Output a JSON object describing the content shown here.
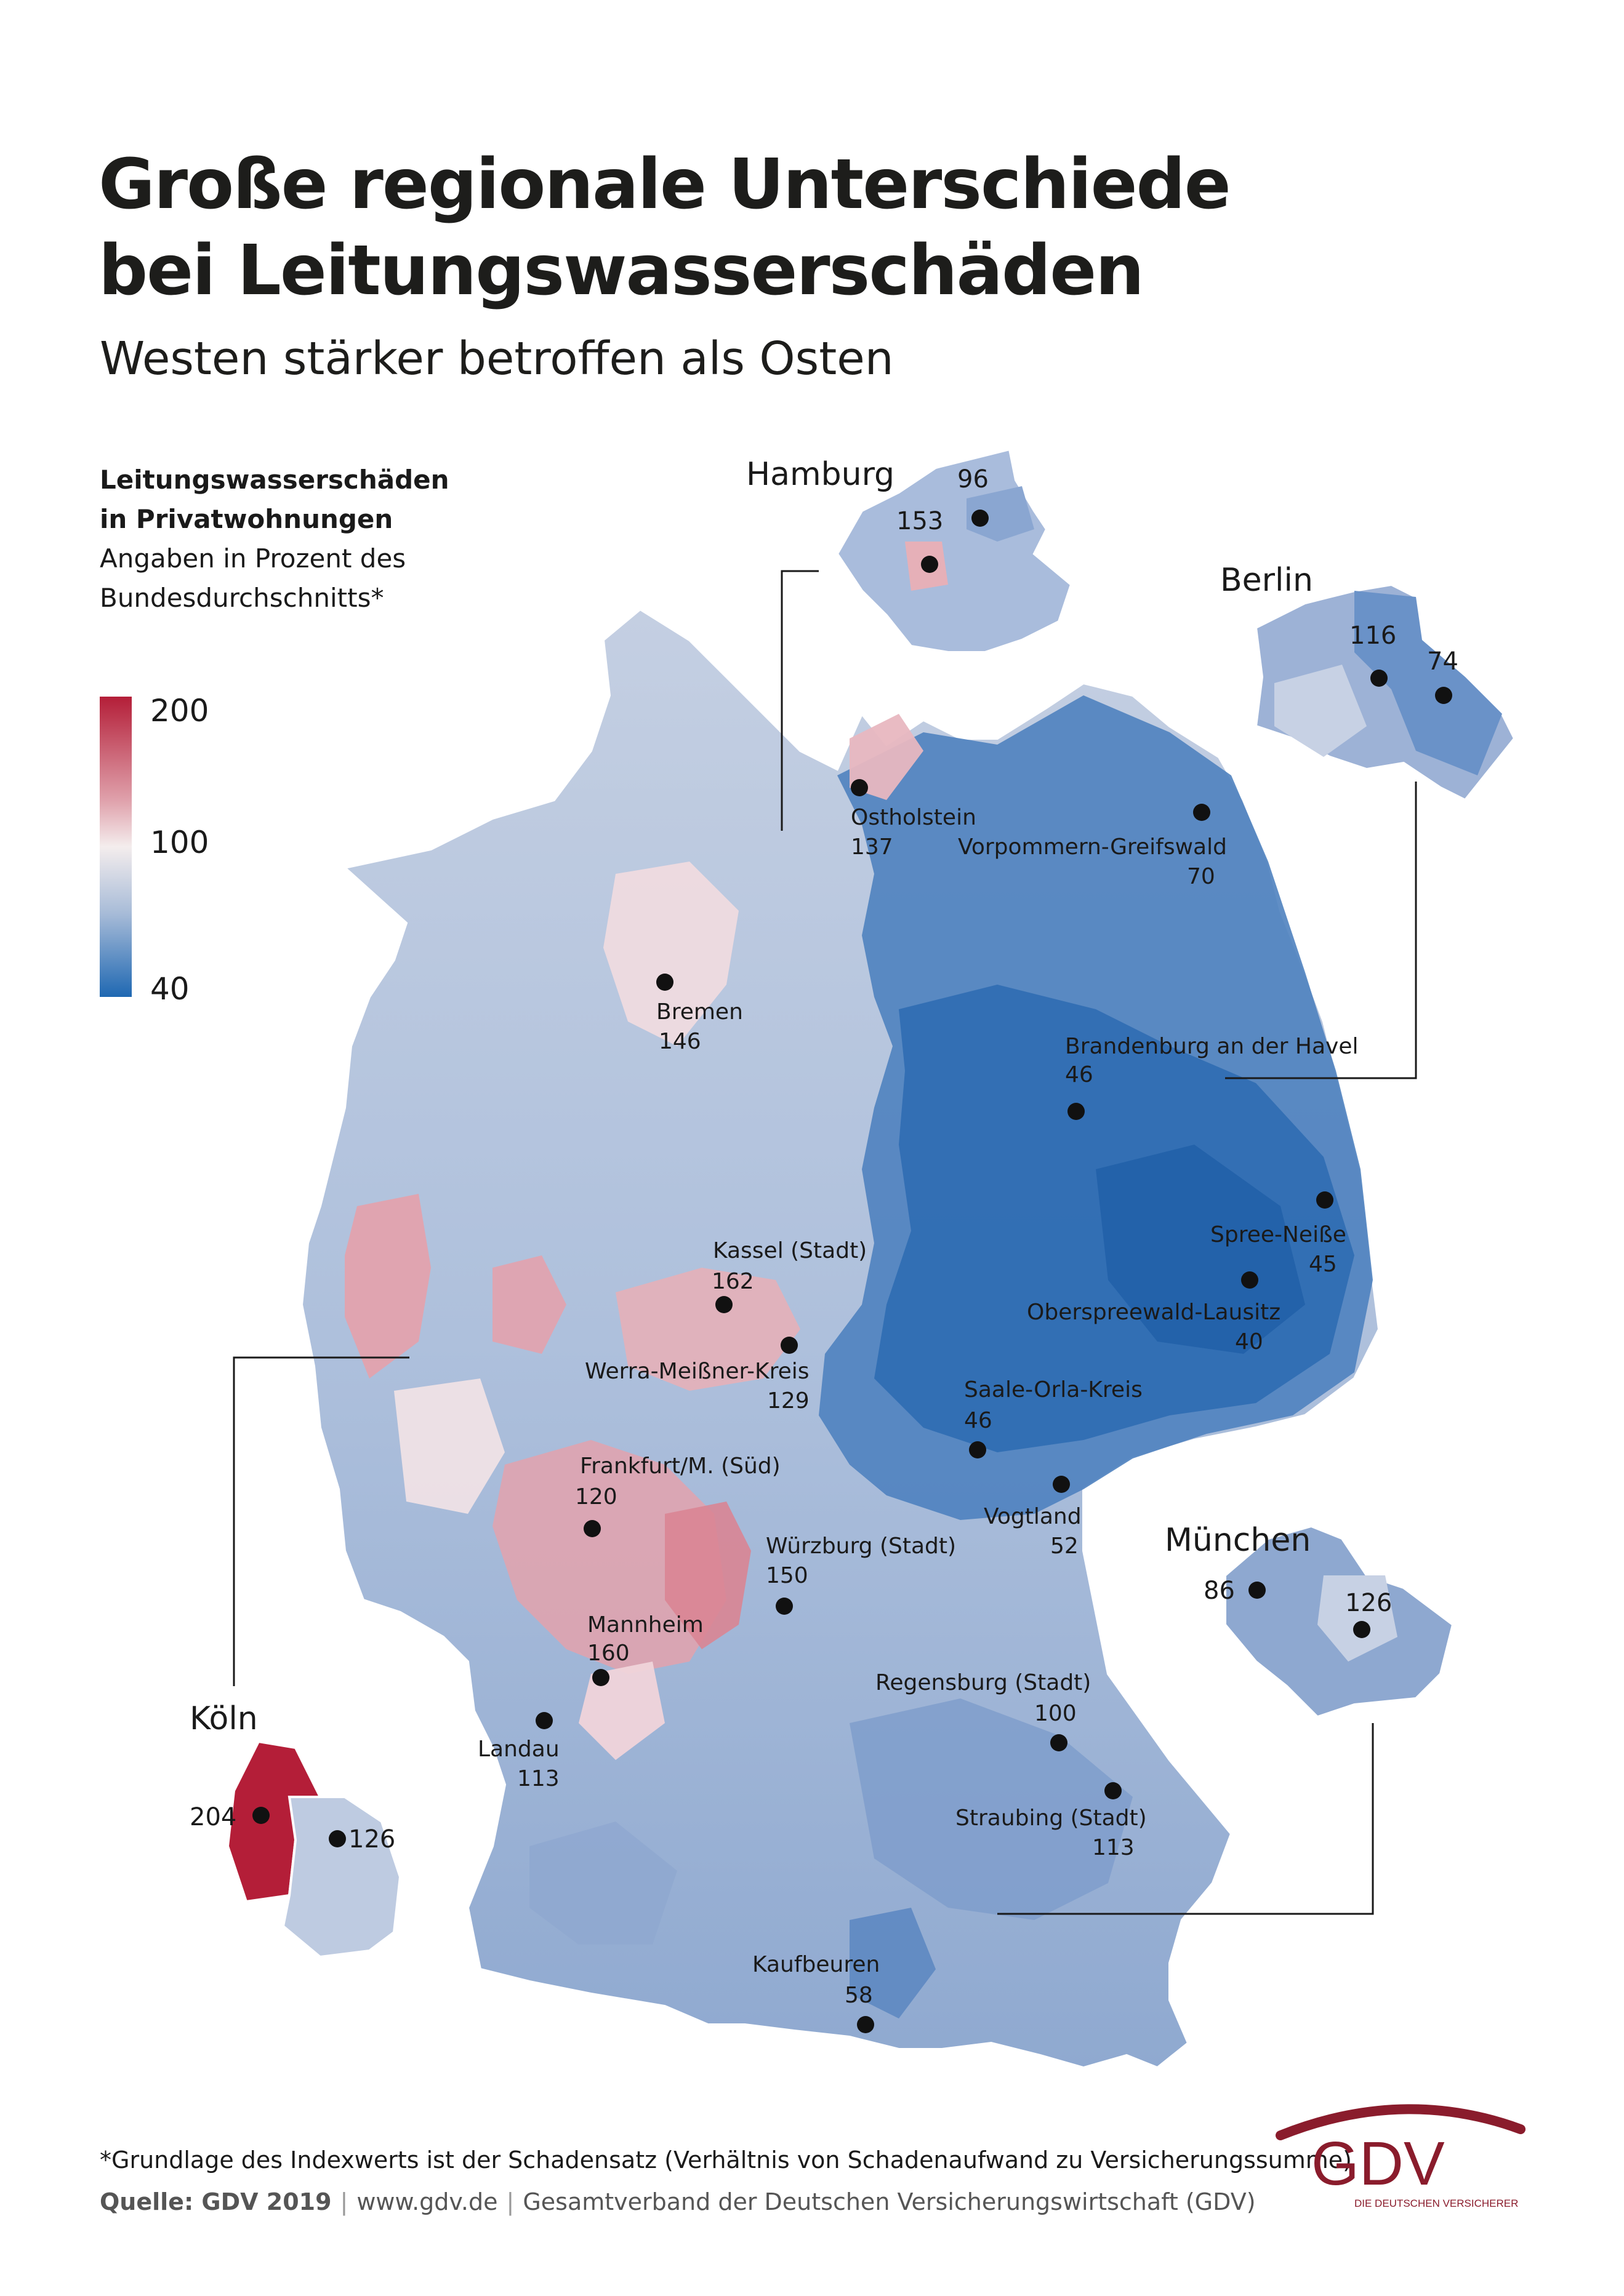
{
  "title_line1": "Große regionale Unterschiede",
  "title_line2": "bei Leitungswasserschäden",
  "subtitle": "Westen stärker betroffen als Osten",
  "legend": {
    "heading1": "Leitungswasserschäden",
    "heading2": "in Privatwohnungen",
    "note1": "Angaben in Prozent des",
    "note2": "Bundesdurchschnitts*",
    "max": "200",
    "mid": "100",
    "min": "40",
    "colors": {
      "high": "#b41e38",
      "mid": "#f4eded",
      "low": "#1f68b2"
    }
  },
  "insets": {
    "hamburg": {
      "title": "Hamburg",
      "values": [
        "96",
        "153"
      ]
    },
    "berlin": {
      "title": "Berlin",
      "values": [
        "116",
        "74"
      ]
    },
    "koeln": {
      "title": "Köln",
      "values": [
        "204",
        "126"
      ]
    },
    "muenchen": {
      "title": "München",
      "values": [
        "86",
        "126"
      ]
    }
  },
  "regions": [
    {
      "name": "Ostholstein",
      "value": "137"
    },
    {
      "name": "Vorpommern-Greifswald",
      "value": "70"
    },
    {
      "name": "Bremen",
      "value": "146"
    },
    {
      "name": "Brandenburg an der Havel",
      "value": "46"
    },
    {
      "name": "Spree-Neiße",
      "value": "45"
    },
    {
      "name": "Oberspreewald-Lausitz",
      "value": "40"
    },
    {
      "name": "Kassel (Stadt)",
      "value": "162"
    },
    {
      "name": "Werra-Meißner-Kreis",
      "value": "129"
    },
    {
      "name": "Saale-Orla-Kreis",
      "value": "46"
    },
    {
      "name": "Frankfurt/M. (Süd)",
      "value": "120"
    },
    {
      "name": "Vogtland",
      "value": "52"
    },
    {
      "name": "Würzburg (Stadt)",
      "value": "150"
    },
    {
      "name": "Mannheim",
      "value": "160"
    },
    {
      "name": "Landau",
      "value": "113"
    },
    {
      "name": "Regensburg (Stadt)",
      "value": "100"
    },
    {
      "name": "Straubing (Stadt)",
      "value": "113"
    },
    {
      "name": "Kaufbeuren",
      "value": "58"
    }
  ],
  "footnote": "*Grundlage des Indexwerts ist der Schadensatz (Verhältnis von Schadenaufwand zu Versicherungssumme)",
  "source": {
    "label": "Quelle: GDV 2019",
    "url": "www.gdv.de",
    "org": "Gesamtverband der Deutschen Versicherungswirtschaft (GDV)"
  },
  "logo": {
    "text": "GDV",
    "tagline": "DIE DEUTSCHEN VERSICHERER"
  }
}
